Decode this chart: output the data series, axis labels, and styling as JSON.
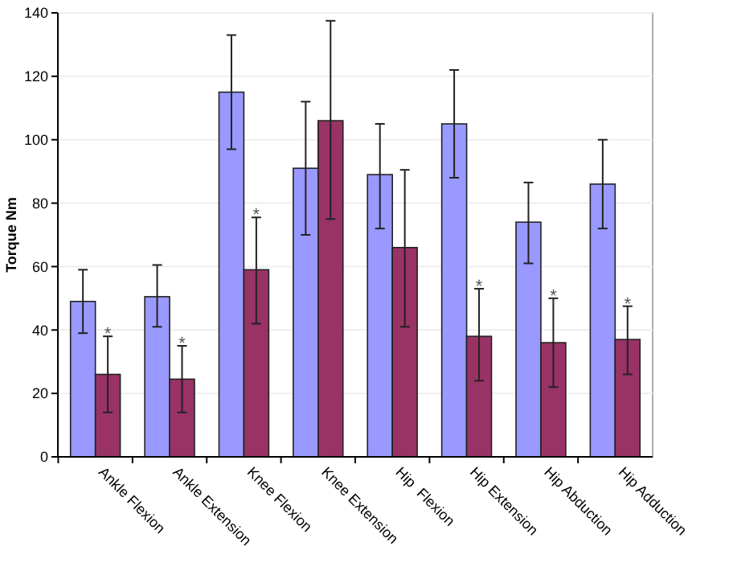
{
  "chart_data": {
    "type": "bar",
    "ylabel": "Torque Nm",
    "categories": [
      "Ankle Flexion",
      "Ankle Extension",
      "Knee Flexion",
      "Knee Extension",
      "Hip  Flexion",
      "Hip Extension",
      "Hip Abduction",
      "Hip Adduction"
    ],
    "series": [
      {
        "color": "#9999ff",
        "values": [
          49,
          50.5,
          115,
          91,
          89,
          105,
          74,
          86
        ],
        "errors": [
          [
            39,
            59
          ],
          [
            41,
            60.5
          ],
          [
            97,
            133
          ],
          [
            70,
            112
          ],
          [
            72,
            105
          ],
          [
            88,
            122
          ],
          [
            61,
            86.5
          ],
          [
            72,
            100
          ]
        ]
      },
      {
        "color": "#993366",
        "values": [
          26,
          24.5,
          59,
          106,
          66,
          38,
          36,
          37
        ],
        "errors": [
          [
            14,
            38
          ],
          [
            14,
            35
          ],
          [
            42,
            75.5
          ],
          [
            75,
            137.5
          ],
          [
            41,
            90.5
          ],
          [
            24,
            53
          ],
          [
            22,
            50
          ],
          [
            26,
            47.5
          ]
        ]
      }
    ],
    "annotations": [
      {
        "text": "*",
        "x": "Ankle Flexion",
        "y": 40
      },
      {
        "text": "*",
        "x": "Ankle Extension",
        "y": 37
      },
      {
        "text": "*",
        "x": "Knee Flexion",
        "y": 77.5
      },
      {
        "text": "*",
        "x": "Hip Extension",
        "y": 55
      },
      {
        "text": "*",
        "x": "Hip Abduction",
        "y": 52
      },
      {
        "text": "*",
        "x": "Hip Adduction",
        "y": 49.5
      }
    ],
    "ylim": [
      0,
      140
    ],
    "yticks": [
      0,
      20,
      40,
      60,
      80,
      100,
      120,
      140
    ],
    "grid": "y"
  }
}
